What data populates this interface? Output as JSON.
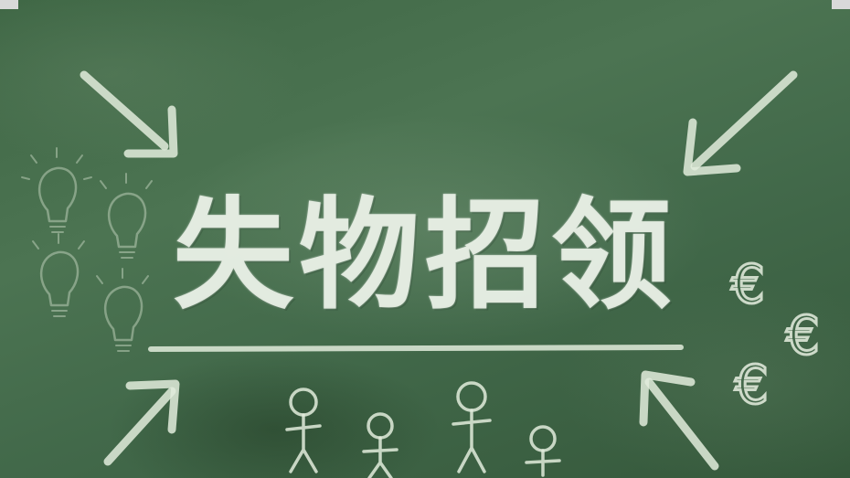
{
  "title": "失物招领",
  "currency_symbol": "€",
  "icons": [
    "arrow-icon",
    "lightbulb-icon",
    "stick-figure-icon",
    "euro-icon"
  ],
  "colors": {
    "board": "#466c4c",
    "chalk": "#e2ecdc"
  }
}
